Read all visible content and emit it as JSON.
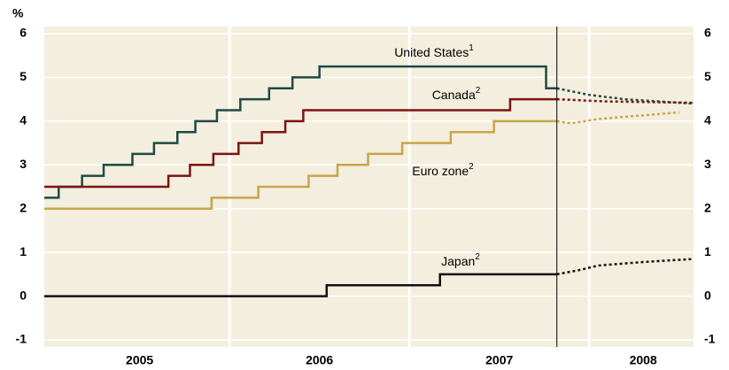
{
  "chart_data": {
    "type": "line",
    "step": "post",
    "y_unit": "%",
    "xlim": [
      2004.97,
      2008.58
    ],
    "ylim": [
      -1,
      6
    ],
    "yticks": [
      -1,
      0,
      1,
      2,
      3,
      4,
      5,
      6
    ],
    "xticks": [
      {
        "value": 2005.5,
        "label": "2005"
      },
      {
        "value": 2006.5,
        "label": "2006"
      },
      {
        "value": 2007.5,
        "label": "2007"
      },
      {
        "value": 2008.3,
        "label": "2008"
      }
    ],
    "xgrid": [
      2006,
      2007,
      2008
    ],
    "grid": true,
    "forecast_start": 2007.82,
    "series": [
      {
        "name": "United States",
        "footnote": "1",
        "color": "#1f4a44",
        "x": [
          2004.97,
          2005.05,
          2005.18,
          2005.3,
          2005.46,
          2005.58,
          2005.71,
          2005.81,
          2005.93,
          2006.06,
          2006.22,
          2006.35,
          2006.5,
          2007.76,
          2007.82
        ],
        "values": [
          2.25,
          2.5,
          2.75,
          3.0,
          3.25,
          3.5,
          3.75,
          4.0,
          4.25,
          4.5,
          4.75,
          5.0,
          5.25,
          4.75,
          4.75
        ],
        "forecast_x": [
          2007.82,
          2008.0,
          2008.2,
          2008.58
        ],
        "forecast_values": [
          4.75,
          4.6,
          4.5,
          4.4
        ]
      },
      {
        "name": "Canada",
        "footnote": "2",
        "color": "#7a1414",
        "x": [
          2004.97,
          2005.66,
          2005.78,
          2005.91,
          2006.05,
          2006.18,
          2006.31,
          2006.41,
          2007.56,
          2007.82
        ],
        "values": [
          2.5,
          2.75,
          3.0,
          3.25,
          3.5,
          3.75,
          4.0,
          4.25,
          4.5,
          4.5
        ],
        "forecast_x": [
          2007.82,
          2008.1,
          2008.58
        ],
        "forecast_values": [
          4.5,
          4.45,
          4.42
        ]
      },
      {
        "name": "Euro zone",
        "footnote": "2",
        "color": "#c9a54a",
        "x": [
          2004.97,
          2005.9,
          2006.16,
          2006.44,
          2006.6,
          2006.77,
          2006.96,
          2007.23,
          2007.47,
          2007.82
        ],
        "values": [
          2.0,
          2.25,
          2.5,
          2.75,
          3.0,
          3.25,
          3.5,
          3.75,
          4.0,
          4.0
        ],
        "forecast_x": [
          2007.82,
          2007.9,
          2008.05,
          2008.2,
          2008.5
        ],
        "forecast_values": [
          4.0,
          3.95,
          4.05,
          4.1,
          4.2
        ]
      },
      {
        "name": "Japan",
        "footnote": "2",
        "color": "#111111",
        "x": [
          2004.97,
          2006.54,
          2007.17,
          2007.82
        ],
        "values": [
          0.0,
          0.25,
          0.5,
          0.5
        ],
        "forecast_x": [
          2007.82,
          2007.95,
          2008.05,
          2008.3,
          2008.58
        ],
        "forecast_values": [
          0.5,
          0.6,
          0.7,
          0.78,
          0.85
        ]
      }
    ]
  }
}
